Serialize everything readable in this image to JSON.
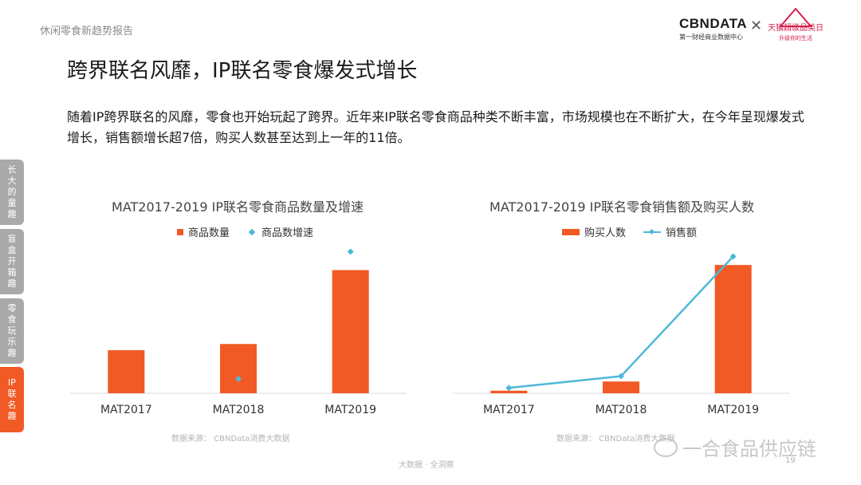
{
  "header": {
    "report_name": "休闲零食新趋势报告",
    "logo_cbn_main": "CBNDATA",
    "logo_cbn_sub": "第一财经商业数据中心",
    "logo_sep": "✕",
    "logo_tmall_main": "天猫超级品类日",
    "logo_tmall_sub": "升级你的生活"
  },
  "page_title": "跨界联名风靡，IP联名零食爆发式增长",
  "intro": "随着IP跨界联名的风靡，零食也开始玩起了跨界。近年来IP联名零食商品种类不断丰富，市场规模也在不断扩大，在今年呈现爆发式增长，销售额增长超7倍，购买人数甚至达到上一年的11倍。",
  "side_tabs": [
    {
      "label": "长大的童趣",
      "active": false
    },
    {
      "label": "盲盒开箱趣",
      "active": false
    },
    {
      "label": "零食玩乐趣",
      "active": false
    },
    {
      "label": "IP联名趣",
      "active": true
    }
  ],
  "colors": {
    "bar": "#f15a24",
    "line": "#4db8d9",
    "axis": "#d9d9d9"
  },
  "chart_data": [
    {
      "type": "bar",
      "title": "MAT2017-2019 IP联名零食商品数量及增速",
      "categories": [
        "MAT2017",
        "MAT2018",
        "MAT2019"
      ],
      "series": [
        {
          "name": "商品数量",
          "kind": "bar",
          "values": [
            0.21,
            0.24,
            0.6
          ]
        },
        {
          "name": "商品数增速",
          "kind": "marker",
          "values": [
            null,
            0.07,
            0.69
          ]
        }
      ],
      "ylim": [
        0,
        0.75
      ],
      "grid": false,
      "legend_position": "top",
      "source": "数据来源：  CBNData消费大数据"
    },
    {
      "type": "bar",
      "title": "MAT2017-2019 IP联名零食销售额及购买人数",
      "categories": [
        "MAT2017",
        "MAT2018",
        "MAT2019"
      ],
      "series": [
        {
          "name": "购买人数",
          "kind": "bar",
          "values": [
            0.012,
            0.055,
            0.6
          ]
        },
        {
          "name": "销售额",
          "kind": "line",
          "values": [
            0.025,
            0.08,
            0.64
          ]
        }
      ],
      "ylim": [
        0,
        0.72
      ],
      "grid": false,
      "legend_position": "top",
      "source": "数据来源：  CBNData消费大数据"
    }
  ],
  "watermark": "一合食品供应链",
  "footer": "大数据 · 全洞察",
  "page_number": "19"
}
